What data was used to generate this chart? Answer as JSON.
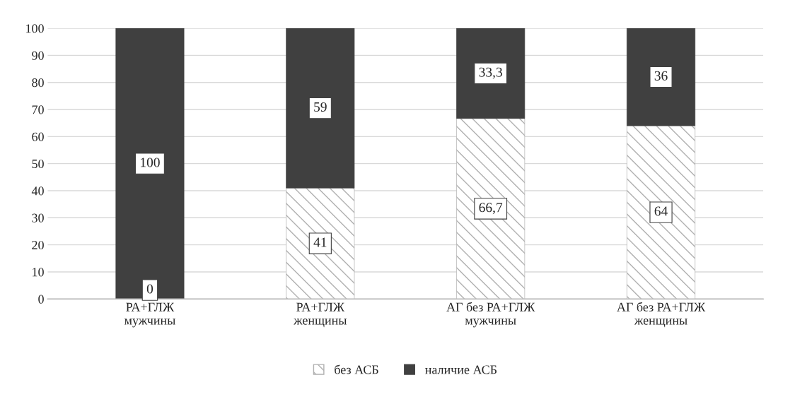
{
  "chart_data": {
    "type": "bar",
    "stacked": true,
    "categories": [
      "РА+ГЛЖ\nмужчины",
      "РА+ГЛЖ\nженщины",
      "АГ без РА+ГЛЖ\nмужчины",
      "АГ без РА+ГЛЖ\nженщины"
    ],
    "series": [
      {
        "name": "без АСБ",
        "color": "#b0b0b0",
        "values": [
          0,
          41,
          66.7,
          64
        ],
        "value_labels": [
          "0",
          "41",
          "66,7",
          "64"
        ]
      },
      {
        "name": "наличие АСБ",
        "color": "#404040",
        "values": [
          100,
          59,
          33.3,
          36
        ],
        "value_labels": [
          "100",
          "59",
          "33,3",
          "36"
        ]
      }
    ],
    "ylim": [
      0,
      100
    ],
    "yticks": [
      0,
      10,
      20,
      30,
      40,
      50,
      60,
      70,
      80,
      90,
      100
    ],
    "grid": "y",
    "legend": "bottom"
  }
}
